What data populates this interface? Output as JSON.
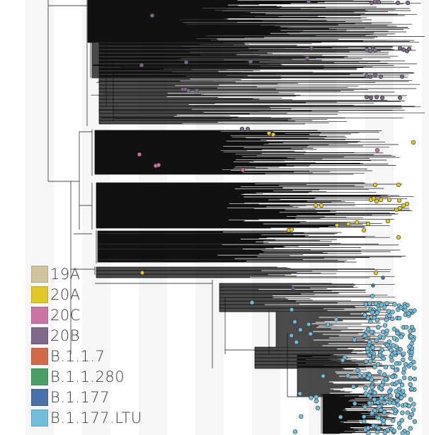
{
  "legend": {
    "items": [
      {
        "label": "19A",
        "color": "#d0c49a"
      },
      {
        "label": "20A",
        "color": "#e1c92a"
      },
      {
        "label": "20C",
        "color": "#cc74a6"
      },
      {
        "label": "20B",
        "color": "#7e6a8a"
      },
      {
        "label": "B.1.1.7",
        "color": "#d46a4b"
      },
      {
        "label": "B.1.1.280",
        "color": "#48a064"
      },
      {
        "label": "B.1.177",
        "color": "#4a70aa"
      },
      {
        "label": "B.1.177.LTU",
        "color": "#6fbedb"
      }
    ]
  },
  "colors": {
    "branch": "#111111",
    "band": "#f6f6f6",
    "background": "#ffffff"
  }
}
